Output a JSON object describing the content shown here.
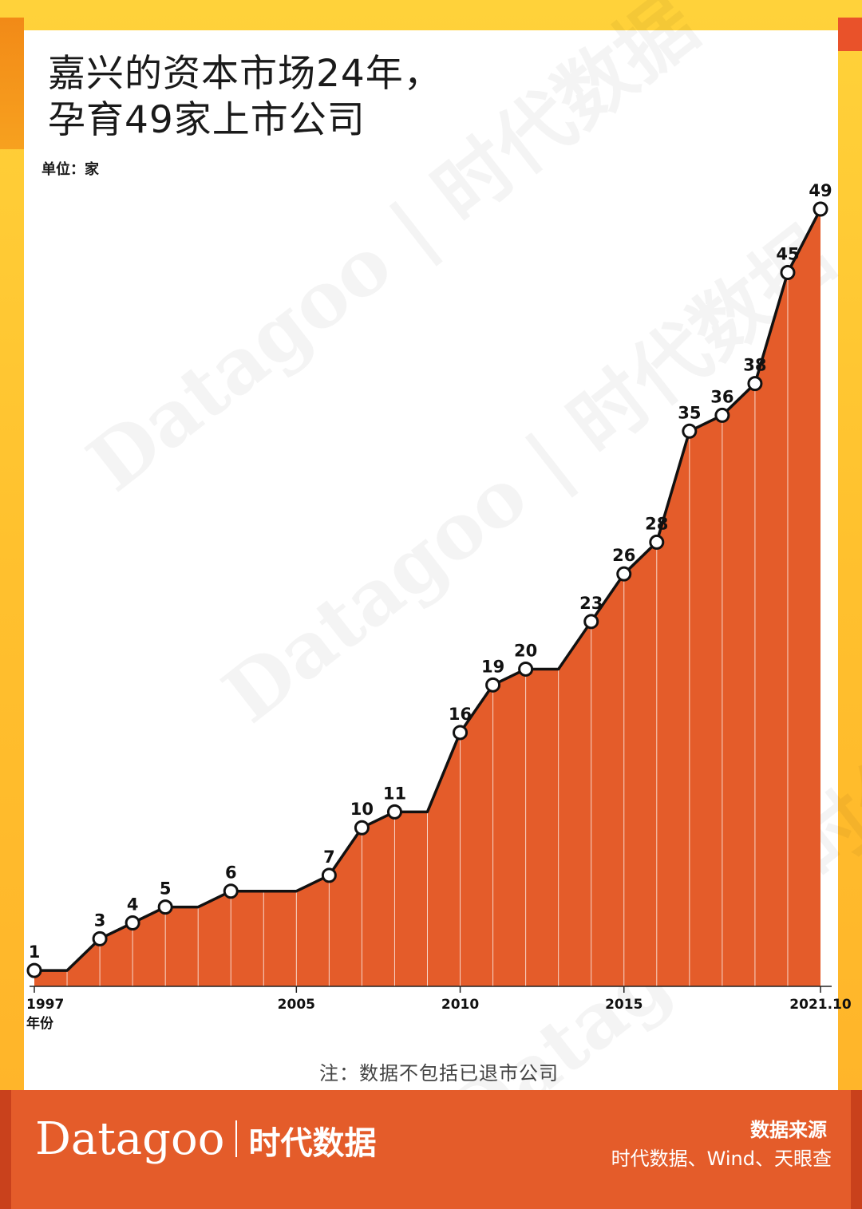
{
  "title_line1": "嘉兴的资本市场24年，",
  "title_line2": "孕育49家上市公司",
  "unit": "单位：家",
  "note": "注：数据不包括已退市公司",
  "x_axis_extra_label": "年份",
  "watermark": "Datagoo | 时代数据",
  "footer": {
    "brand_en": "Datagoo",
    "brand_cn": "时代数据",
    "source_title": "数据来源",
    "source_text": "时代数据、Wind、天眼查"
  },
  "colors": {
    "area": "#e45c2a",
    "line": "#111111",
    "frame_yellow": "#ffc12e",
    "footer": "#e45c2a"
  },
  "chart_data": {
    "type": "area",
    "title": "嘉兴的资本市场24年，孕育49家上市公司",
    "ylabel": "单位：家",
    "xlabel": "年份",
    "x_tick_labels": [
      "1997",
      "2005",
      "2010",
      "2015",
      "2021.10"
    ],
    "x_tick_positions": [
      1997,
      2005,
      2010,
      2015,
      2021
    ],
    "xlim": [
      1997,
      2021
    ],
    "ylim": [
      0,
      49
    ],
    "grid": false,
    "series": [
      {
        "x": [
          1997,
          1998,
          1999,
          2000,
          2001,
          2002,
          2003,
          2004,
          2005,
          2006,
          2007,
          2008,
          2009,
          2010,
          2011,
          2012,
          2013,
          2014,
          2015,
          2016,
          2017,
          2018,
          2019,
          2020,
          2021
        ],
        "values": [
          1,
          1,
          3,
          4,
          5,
          5,
          6,
          6,
          6,
          7,
          10,
          11,
          11,
          16,
          19,
          20,
          20,
          23,
          26,
          28,
          35,
          36,
          38,
          45,
          49
        ],
        "labeled": [
          true,
          false,
          true,
          true,
          true,
          false,
          true,
          false,
          false,
          true,
          true,
          true,
          false,
          true,
          true,
          true,
          false,
          true,
          true,
          true,
          true,
          true,
          true,
          true,
          true
        ]
      }
    ]
  }
}
